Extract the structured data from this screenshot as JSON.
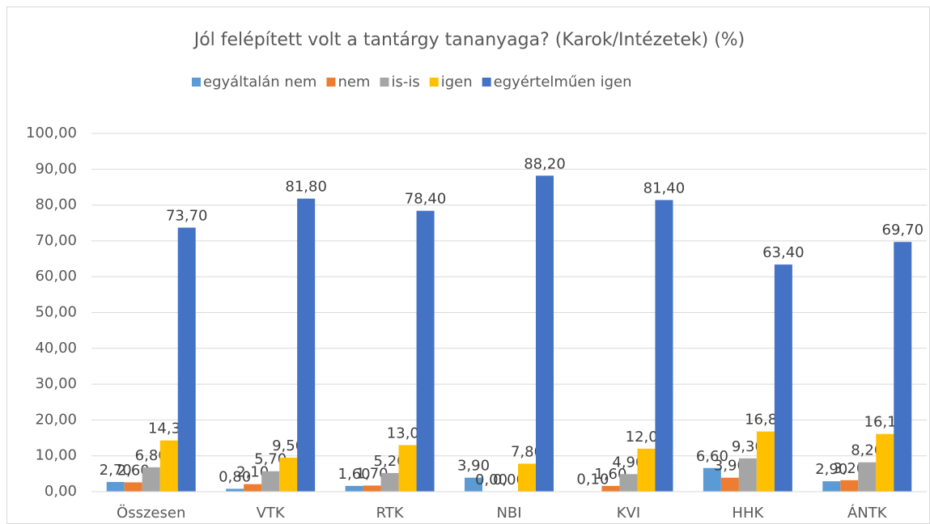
{
  "chart_data": {
    "type": "bar",
    "title": "Jól felépített volt a tantárgy tananyaga? (Karok/Intézetek) (%)",
    "categories": [
      "Összesen",
      "VTK",
      "RTK",
      "NBI",
      "KVI",
      "HHK",
      "ÁNTK"
    ],
    "series": [
      {
        "name": "egyáltalán nem",
        "color": "#5b9bd5",
        "values": [
          2.7,
          0.8,
          1.6,
          3.9,
          0.1,
          6.6,
          2.9
        ],
        "value_labels": [
          "2,70",
          "0,80",
          "1,60",
          "3,90",
          "0,10",
          "6,60",
          "2,90"
        ]
      },
      {
        "name": "nem",
        "color": "#ed7d31",
        "values": [
          2.6,
          2.1,
          1.7,
          0,
          1.6,
          3.9,
          3.2
        ],
        "value_labels": [
          "2,60",
          "2,10",
          "1,70",
          "0,00",
          "1,60",
          "3,90",
          "3,20"
        ]
      },
      {
        "name": "is-is",
        "color": "#a5a5a5",
        "values": [
          6.8,
          5.7,
          5.2,
          0,
          4.9,
          9.3,
          8.2
        ],
        "value_labels": [
          "6,80",
          "5,70",
          "5,20",
          "0,00",
          "4,90",
          "9,30",
          "8,20"
        ]
      },
      {
        "name": "igen",
        "color": "#ffc000",
        "values": [
          14.3,
          9.5,
          13,
          7.8,
          12,
          16.8,
          16.1
        ],
        "value_labels": [
          "14,30",
          "9,50",
          "13,00",
          "7,80",
          "12,00",
          "16,80",
          "16,10"
        ]
      },
      {
        "name": "egyértelműen igen",
        "color": "#4472c4",
        "values": [
          73.7,
          81.8,
          78.4,
          88.2,
          81.4,
          63.4,
          69.7
        ],
        "value_labels": [
          "73,70",
          "81,80",
          "78,40",
          "88,20",
          "81,40",
          "63,40",
          "69,70"
        ]
      }
    ],
    "ylim": [
      0,
      100
    ],
    "yticks": [
      {
        "value": 0,
        "label": "0,00"
      },
      {
        "value": 10,
        "label": "10,00"
      },
      {
        "value": 20,
        "label": "20,00"
      },
      {
        "value": 30,
        "label": "30,00"
      },
      {
        "value": 40,
        "label": "40,00"
      },
      {
        "value": 50,
        "label": "50,00"
      },
      {
        "value": 60,
        "label": "60,00"
      },
      {
        "value": 70,
        "label": "70,00"
      },
      {
        "value": 80,
        "label": "80,00"
      },
      {
        "value": 90,
        "label": "90,00"
      },
      {
        "value": 100,
        "label": "100,00"
      }
    ],
    "grid": true,
    "legend": "top"
  }
}
